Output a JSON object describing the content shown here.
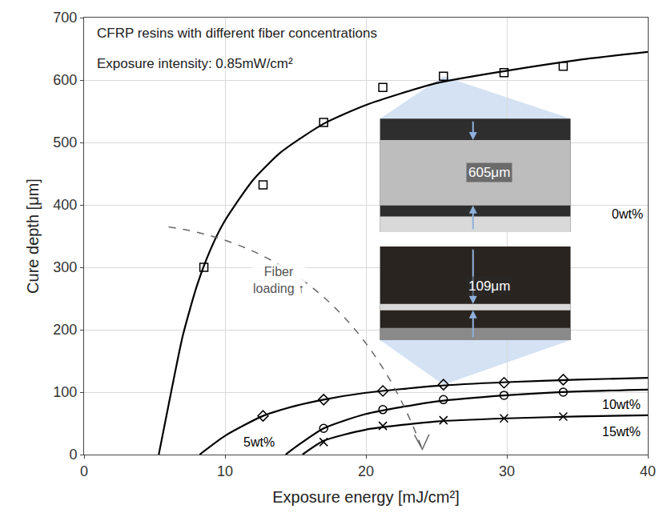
{
  "chart_data": {
    "type": "scatter",
    "x_label": "Exposure energy [mJ/cm²]",
    "y_label": "Cure depth [μm]",
    "xlim": [
      0,
      40
    ],
    "xticks": [
      0,
      10,
      20,
      30,
      40
    ],
    "ylim": [
      0,
      700
    ],
    "yticks": [
      0,
      100,
      200,
      300,
      400,
      500,
      600,
      700
    ],
    "grid": true,
    "annotations": [
      "CFRP resins with different fiber concentrations",
      "Exposure intensity: 0.85mW/cm²",
      "Fiber loading ↑"
    ],
    "inset_labels": [
      "605μm",
      "109μm"
    ],
    "series": [
      {
        "name": "0wt%",
        "color": "#000000",
        "marker": "square",
        "line_style": "solid",
        "x": [
          8.5,
          12.7,
          17,
          21.2,
          25.5,
          29.8,
          34
        ],
        "values": [
          300,
          432,
          532,
          588,
          606,
          612,
          622
        ],
        "fit": {
          "x": [
            5.3,
            6,
            7,
            8,
            9,
            10,
            12,
            14,
            17,
            20,
            25,
            30,
            35,
            40
          ],
          "values": [
            0,
            80,
            190,
            270,
            330,
            375,
            440,
            485,
            530,
            560,
            595,
            615,
            632,
            645
          ]
        }
      },
      {
        "name": "5wt%",
        "color": "#000000",
        "marker": "diamond",
        "line_style": "solid",
        "x": [
          12.7,
          17,
          21.2,
          25.5,
          29.8,
          34
        ],
        "values": [
          62,
          88,
          102,
          112,
          115,
          120
        ],
        "fit": {
          "x": [
            8.2,
            10,
            12.7,
            15,
            17,
            20,
            25,
            30,
            35,
            40
          ],
          "values": [
            0,
            30,
            62,
            78,
            88,
            99,
            110,
            116,
            120,
            123
          ]
        }
      },
      {
        "name": "10wt%",
        "color": "#000000",
        "marker": "circle",
        "line_style": "solid",
        "x": [
          17,
          21.2,
          25.5,
          29.8,
          34
        ],
        "values": [
          42,
          72,
          88,
          95,
          100
        ],
        "fit": {
          "x": [
            14.3,
            15,
            17,
            20,
            25,
            30,
            35,
            40
          ],
          "values": [
            0,
            12,
            42,
            65,
            85,
            95,
            101,
            104
          ]
        }
      },
      {
        "name": "15wt%",
        "color": "#000000",
        "marker": "x",
        "line_style": "solid",
        "x": [
          17,
          21.2,
          25.5,
          29.8,
          34
        ],
        "values": [
          20,
          46,
          55,
          58,
          61
        ],
        "fit": {
          "x": [
            15.5,
            17,
            20,
            25,
            30,
            35,
            40
          ],
          "values": [
            0,
            22,
            40,
            53,
            58,
            61,
            63
          ]
        }
      }
    ]
  }
}
